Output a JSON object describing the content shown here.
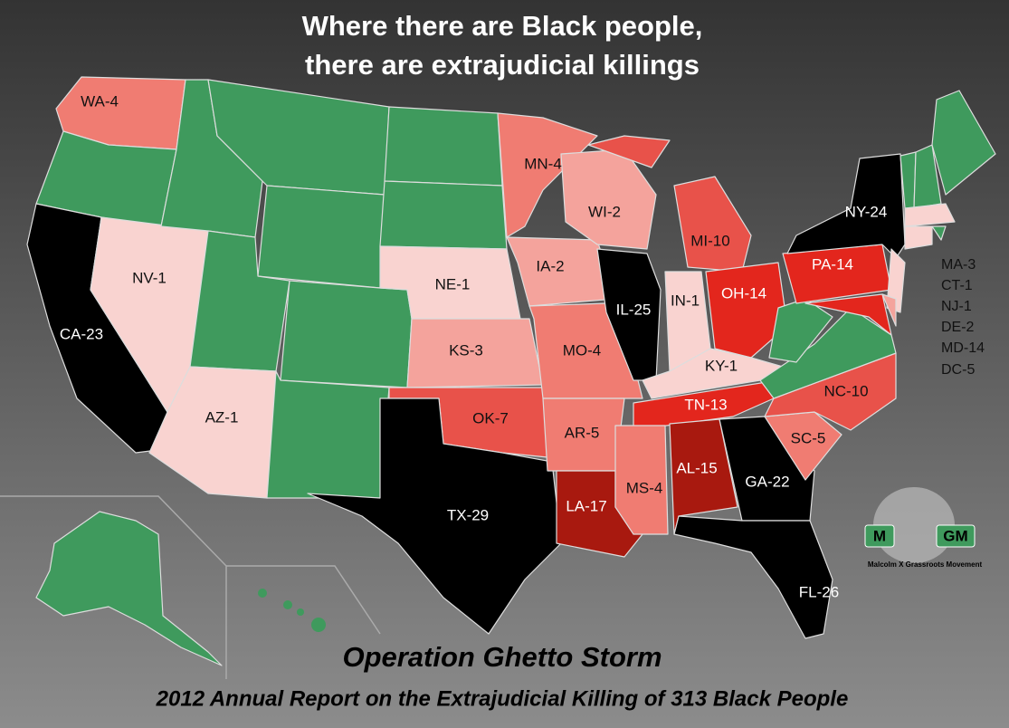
{
  "header": {
    "title_lines": [
      "Where there are Black people,",
      "there are extrajudicial killings"
    ]
  },
  "states": [
    {
      "label": "WA-4"
    },
    {
      "label": "CA-23"
    },
    {
      "label": "NV-1"
    },
    {
      "label": "AZ-1"
    },
    {
      "label": "NE-1"
    },
    {
      "label": "KS-3"
    },
    {
      "label": "OK-7"
    },
    {
      "label": "TX-29"
    },
    {
      "label": "MN-4"
    },
    {
      "label": "IA-2"
    },
    {
      "label": "MO-4"
    },
    {
      "label": "AR-5"
    },
    {
      "label": "LA-17"
    },
    {
      "label": "WI-2"
    },
    {
      "label": "IL-25"
    },
    {
      "label": "IN-1"
    },
    {
      "label": "MI-10"
    },
    {
      "label": "OH-14"
    },
    {
      "label": "KY-1"
    },
    {
      "label": "TN-13"
    },
    {
      "label": "MS-4"
    },
    {
      "label": "AL-15"
    },
    {
      "label": "GA-22"
    },
    {
      "label": "FL-26"
    },
    {
      "label": "SC-5"
    },
    {
      "label": "NC-10"
    },
    {
      "label": "PA-14"
    },
    {
      "label": "NY-24"
    }
  ],
  "side_list": [
    "MA-3",
    "CT-1",
    "NJ-1",
    "DE-2",
    "MD-14",
    "DC-5"
  ],
  "logo": {
    "left": "M",
    "right": "GM",
    "caption": "Malcolm X Grassroots Movement"
  },
  "footer": {
    "title": "Operation Ghetto Storm",
    "subtitle": "2012 Annual Report on the Extrajudicial Killing of 313 Black People"
  }
}
